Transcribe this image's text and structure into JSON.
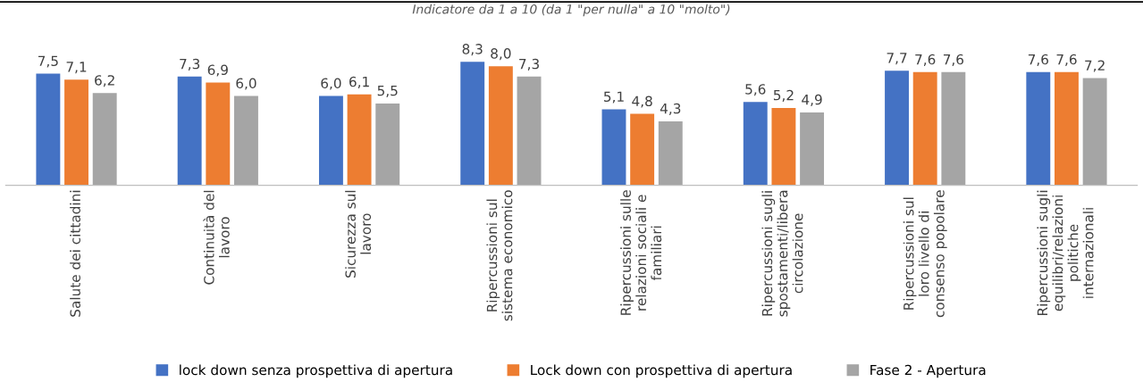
{
  "chart_data": {
    "type": "bar",
    "subtitle": "Indicatore da 1 a 10 (da 1 \"per nulla\" a 10 \"molto\")",
    "categories": [
      "Salute dei cittadini",
      "Continuità del\nlavoro",
      "Sicurezza sul\nlavoro",
      "Ripercussioni sul\nsistema economico",
      "Ripercussioni sulle\nrelazioni sociali e\nfamiliari",
      "Ripercussioni sugli\nspostamenti/libera\ncircolazione",
      "Ripercussioni sul\nloro livello di\nconsenso popolare",
      "Ripercussioni sugli\nequilibri/relazioni\npolitiche\ninternazionali"
    ],
    "series": [
      {
        "name": "lock down senza prospettiva di apertura",
        "color": "#4472c4",
        "values": [
          7.5,
          7.3,
          6.0,
          8.3,
          5.1,
          5.6,
          7.7,
          7.6
        ],
        "value_labels": [
          "7,5",
          "7,3",
          "6,0",
          "8,3",
          "5,1",
          "5,6",
          "7,7",
          "7,6"
        ]
      },
      {
        "name": "Lock down con prospettiva di apertura",
        "color": "#ed7d31",
        "values": [
          7.1,
          6.9,
          6.1,
          8.0,
          4.8,
          5.2,
          7.6,
          7.6
        ],
        "value_labels": [
          "7,1",
          "6,9",
          "6,1",
          "8,0",
          "4,8",
          "5,2",
          "7,6",
          "7,6"
        ]
      },
      {
        "name": "Fase 2 - Apertura",
        "color": "#a5a5a5",
        "values": [
          6.2,
          6.0,
          5.5,
          7.3,
          4.3,
          4.9,
          7.6,
          7.2
        ],
        "value_labels": [
          "6,2",
          "6,0",
          "5,5",
          "7,3",
          "4,3",
          "4,9",
          "7,6",
          "7,2"
        ]
      }
    ],
    "legend": "bottom"
  }
}
